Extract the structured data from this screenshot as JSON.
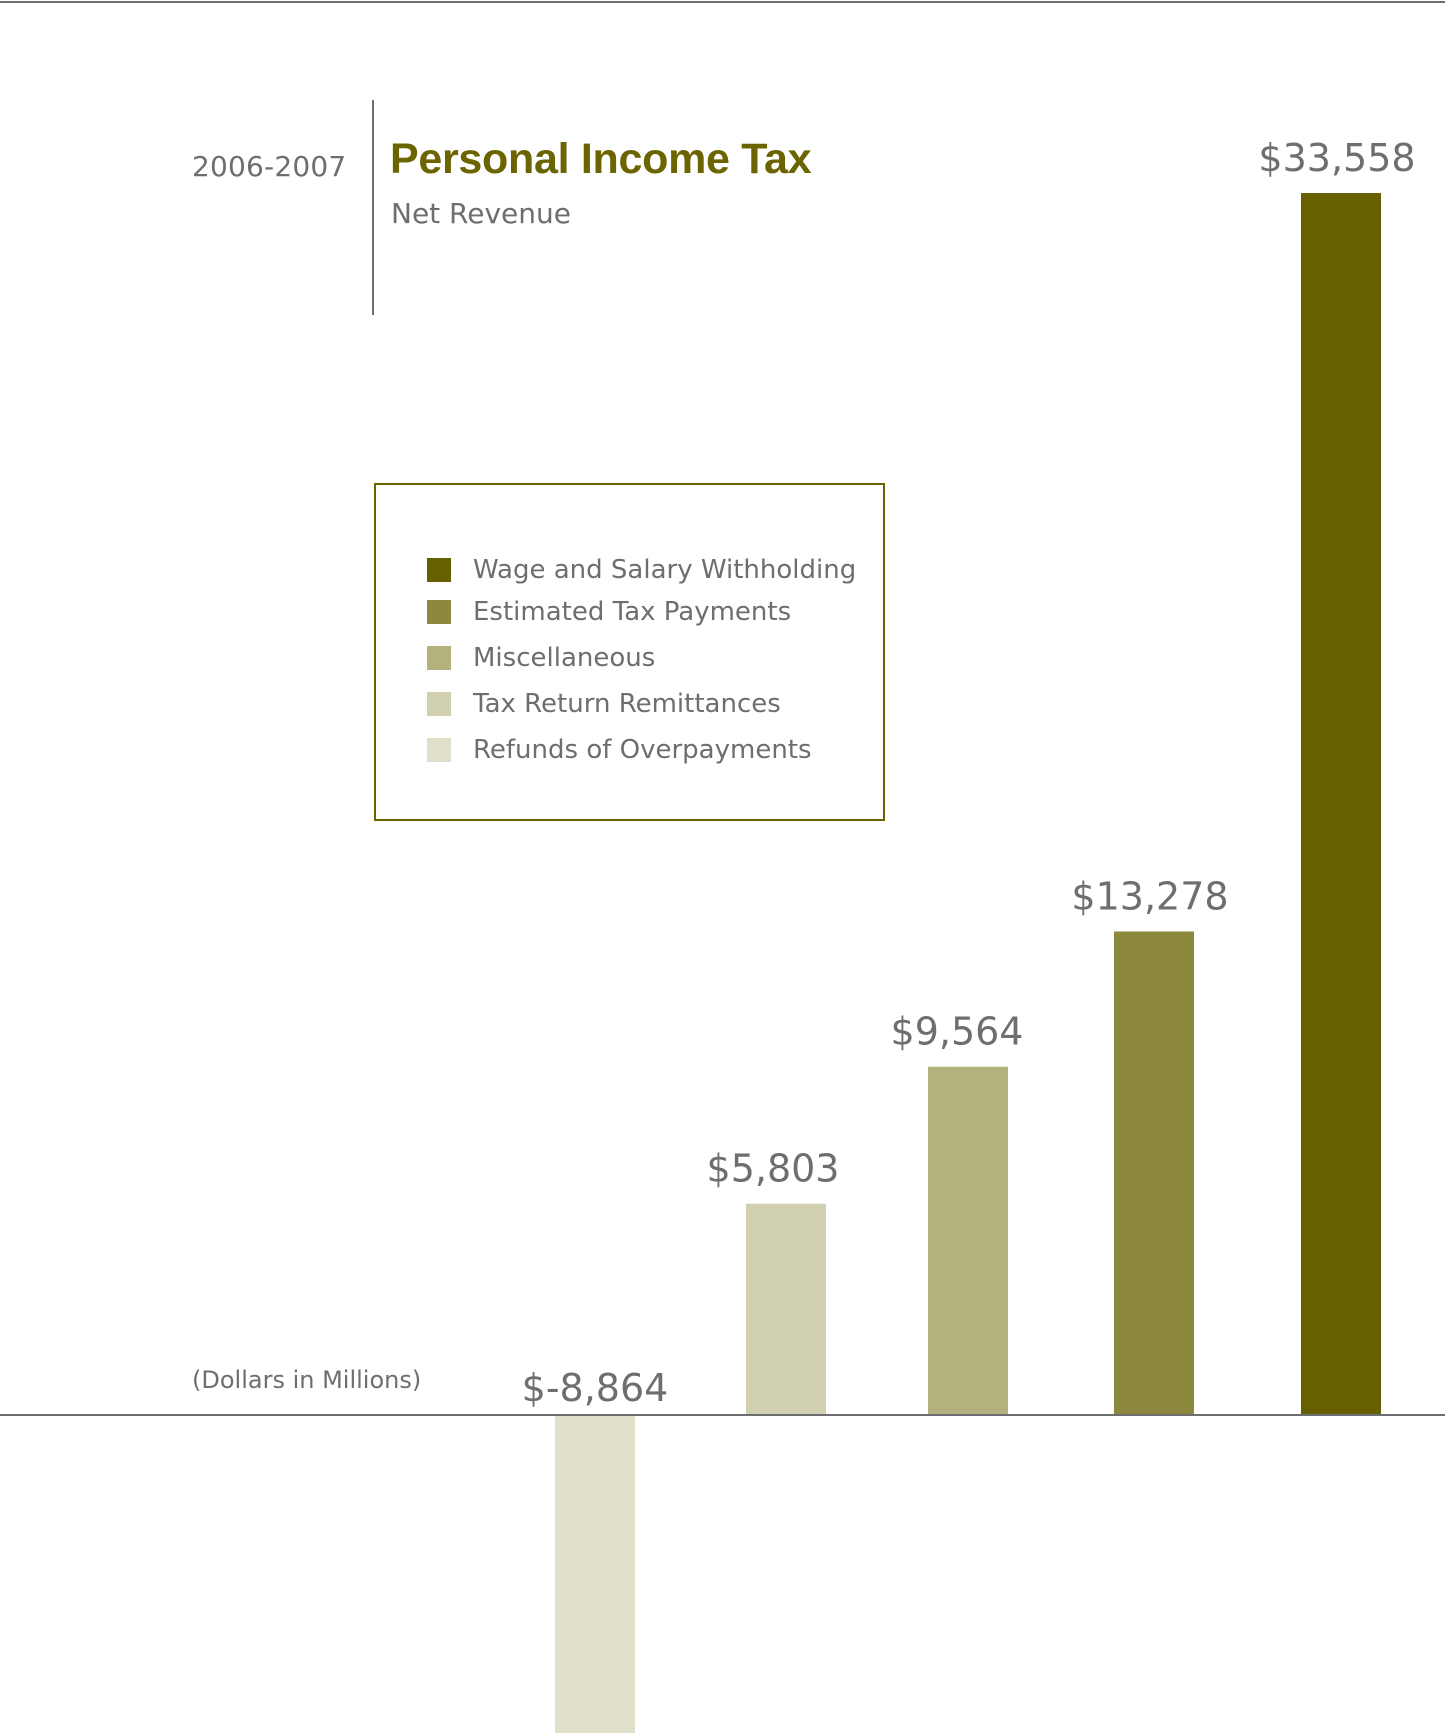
{
  "header": {
    "period": "2006-2007",
    "title": "Personal Income Tax",
    "subtitle": "Net Revenue"
  },
  "units_note": "(Dollars in Millions)",
  "colors": {
    "title": "#6b6400",
    "text": "#6d6e71",
    "rule": "#6d6e71",
    "legend_border": "#6b6400"
  },
  "chart_data": {
    "type": "bar",
    "title": "Personal Income Tax",
    "subtitle": "Net Revenue",
    "xlabel": "",
    "ylabel": "",
    "grid": false,
    "legend_placement": "upper-left",
    "ylim": [
      -8864,
      33558
    ],
    "categories": [
      "Refunds of Overpayments",
      "Tax Return Remittances",
      "Miscellaneous",
      "Estimated Tax Payments",
      "Wage and Salary Withholding"
    ],
    "values": [
      -8864,
      5803,
      9564,
      13278,
      33558
    ],
    "data_labels": [
      "$-8,864",
      "$5,803",
      "$9,564",
      "$13,278",
      "$33,558"
    ],
    "colors": [
      "#e0dfca",
      "#d1d0b0",
      "#b3b17e",
      "#8c883e",
      "#666000"
    ],
    "legend": [
      {
        "label": "Wage and Salary Withholding",
        "color": "#666000"
      },
      {
        "label": "Estimated Tax Payments",
        "color": "#8c883e"
      },
      {
        "label": "Miscellaneous",
        "color": "#b3b17e"
      },
      {
        "label": "Tax Return Remittances",
        "color": "#d1d0b0"
      },
      {
        "label": "Refunds of Overpayments",
        "color": "#e0dfca"
      }
    ]
  }
}
